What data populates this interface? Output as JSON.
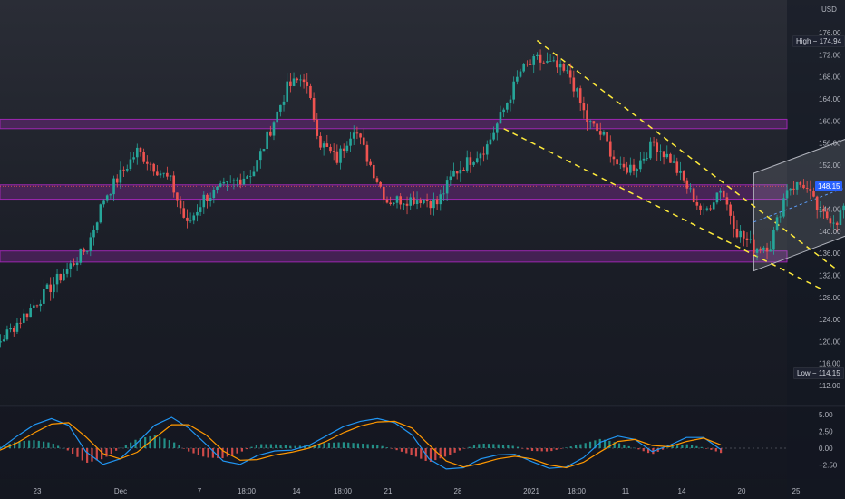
{
  "currency": "USD",
  "chart_data": [
    {
      "type": "candlestick",
      "title": "",
      "yaxis": {
        "ticks": [
          112,
          116,
          120,
          124,
          128,
          132,
          136,
          140,
          144,
          148,
          152,
          156,
          160,
          164,
          168,
          172,
          176
        ],
        "ylim": [
          110.5,
          176.5
        ]
      },
      "xaxis": {
        "ticks": [
          "23",
          "Dec",
          "7",
          "18:00",
          "14",
          "18:00",
          "21",
          "28",
          "2021",
          "18:00",
          "11",
          "14",
          "20",
          "25"
        ]
      },
      "high_label": "High",
      "high_value": "174.94",
      "low_label": "Low",
      "low_value": "114.15",
      "last_price": "148.15",
      "anchors": [
        {
          "x": "Nov 19",
          "close": 114.6
        },
        {
          "x": "Nov 22",
          "close": 124
        },
        {
          "x": "Nov 24",
          "close": 130.5
        },
        {
          "x": "Nov 26",
          "close": 137
        },
        {
          "x": "Nov 27",
          "close": 146
        },
        {
          "x": "Nov 29",
          "close": 154.5
        },
        {
          "x": "Dec 1",
          "close": 149
        },
        {
          "x": "Dec 2",
          "close": 141
        },
        {
          "x": "Dec 3",
          "close": 146
        },
        {
          "x": "Dec 4",
          "close": 147.5
        },
        {
          "x": "Dec 6",
          "close": 151
        },
        {
          "x": "Dec 8",
          "close": 166
        },
        {
          "x": "Dec 9",
          "close": 168
        },
        {
          "x": "Dec 10",
          "close": 156
        },
        {
          "x": "Dec 11",
          "close": 153
        },
        {
          "x": "Dec 12",
          "close": 159
        },
        {
          "x": "Dec 13",
          "close": 152
        },
        {
          "x": "Dec 14",
          "close": 145.5
        },
        {
          "x": "Dec 16",
          "close": 146
        },
        {
          "x": "Dec 17",
          "close": 145
        },
        {
          "x": "Dec 18",
          "close": 150.5
        },
        {
          "x": "Dec 20",
          "close": 155.5
        },
        {
          "x": "Dec 21",
          "close": 162
        },
        {
          "x": "Dec 22",
          "close": 169
        },
        {
          "x": "Dec 23",
          "close": 171
        },
        {
          "x": "Dec 24",
          "close": 170
        },
        {
          "x": "Dec 25",
          "close": 168
        },
        {
          "x": "Dec 26",
          "close": 160
        },
        {
          "x": "Dec 27",
          "close": 157
        },
        {
          "x": "Dec 28",
          "close": 151
        },
        {
          "x": "Dec 29",
          "close": 152
        },
        {
          "x": "Dec 30",
          "close": 156
        },
        {
          "x": "Dec 31",
          "close": 153
        },
        {
          "x": "Jan 1",
          "close": 148
        },
        {
          "x": "Jan 2",
          "close": 143
        },
        {
          "x": "Jan 3",
          "close": 148
        },
        {
          "x": "Jan 4",
          "close": 140
        },
        {
          "x": "Jan 5",
          "close": 137
        },
        {
          "x": "Jan 6",
          "close": 137.5
        },
        {
          "x": "Jan 7",
          "close": 148
        },
        {
          "x": "Jan 8",
          "close": 148.5
        },
        {
          "x": "Jan 9",
          "close": 143
        },
        {
          "x": "Jan 10",
          "close": 142
        },
        {
          "x": "Jan 11",
          "close": 148
        },
        {
          "x": "Jan 12",
          "close": 152
        },
        {
          "x": "Jan 13",
          "close": 149
        },
        {
          "x": "Jan 14",
          "close": 155
        },
        {
          "x": "Jan 15",
          "close": 151
        },
        {
          "x": "Jan 16",
          "close": 149
        }
      ],
      "zones": [
        {
          "name": "resistance-zone",
          "top": 160.3,
          "bottom": 158.6,
          "color": "#9c27b0"
        },
        {
          "name": "mid-zone",
          "top": 148.4,
          "bottom": 145.8,
          "color": "#9c27b0"
        },
        {
          "name": "support-zone",
          "top": 136.4,
          "bottom": 134.4,
          "color": "#9c27b0"
        }
      ],
      "trendlines": [
        {
          "name": "falling-upper",
          "from": {
            "x": "Dec 23",
            "y": 174.6
          },
          "to": {
            "x": "Jan 10",
            "y": 133.0
          }
        },
        {
          "name": "falling-lower",
          "from": {
            "x": "Dec 21",
            "y": 158.6
          },
          "to": {
            "x": "Jan 9",
            "y": 129.6
          }
        }
      ],
      "channel": {
        "from": "Jan 5",
        "to": "Jan 21",
        "upper": [
          150.5,
          168.5
        ],
        "lower": [
          132.8,
          151.2
        ]
      },
      "colors": {
        "up": "#26a69a",
        "down": "#ef5350",
        "zone": "#9c27b0",
        "trend": "#ffeb3b",
        "channel": "#b2b5be",
        "axis_text": "#b2b5be",
        "last_price": "#2962ff"
      }
    },
    {
      "type": "line",
      "title": "",
      "yaxis": {
        "ticks": [
          "5.00",
          "2.50",
          "0.00",
          "−2.50"
        ],
        "ylim": [
          -4.2,
          6.2
        ]
      },
      "series": [
        {
          "color": "#2196f3",
          "values": [
            -0.1,
            1.8,
            3.5,
            4.4,
            3.4,
            -0.5,
            -2.4,
            -1.6,
            0.8,
            3.4,
            4.6,
            3.0,
            0.6,
            -1.9,
            -2.4,
            -1.1,
            -0.4,
            -0.3,
            0.4,
            1.8,
            3.2,
            4.0,
            4.4,
            3.8,
            2.0,
            -1.6,
            -3.1,
            -2.9,
            -1.6,
            -1.0,
            -0.9,
            -2.0,
            -3.0,
            -2.8,
            -1.4,
            0.9,
            1.8,
            1.3,
            -0.5,
            0.4,
            1.6,
            1.6,
            -0.2
          ]
        },
        {
          "color": "#ff9800",
          "values": [
            -0.3,
            0.8,
            2.3,
            3.6,
            3.8,
            1.7,
            -0.8,
            -1.6,
            -0.6,
            1.5,
            3.5,
            3.5,
            2.0,
            -0.4,
            -1.8,
            -1.7,
            -1.0,
            -0.6,
            0.0,
            1.0,
            2.3,
            3.3,
            3.9,
            4.0,
            3.0,
            0.5,
            -1.9,
            -2.8,
            -2.3,
            -1.6,
            -1.2,
            -1.6,
            -2.5,
            -2.9,
            -2.1,
            -0.5,
            1.0,
            1.3,
            0.4,
            0.2,
            1.0,
            1.5,
            0.5
          ]
        }
      ],
      "histogram_colors": {
        "positive": "#26a69a",
        "negative": "#ef5350"
      }
    }
  ]
}
